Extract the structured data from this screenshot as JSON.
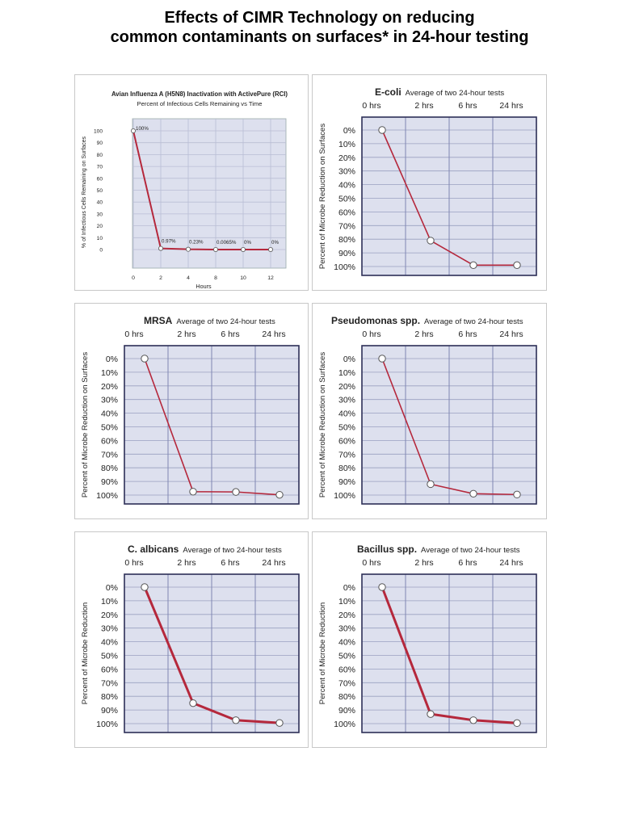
{
  "page": {
    "title_line1": "Effects of CIMR Technology on reducing",
    "title_line2": "common contaminants on surfaces* in 24-hour testing"
  },
  "colors": {
    "line": "#b5283c",
    "plot_bg": "#dde0ee",
    "frame": "#2d2f57",
    "grid": "#9aa0c0",
    "panel_border": "#c8c8c8"
  },
  "chart_data": [
    {
      "type": "line",
      "title": "Avian Influenza A (H5N8) Inactivation with ActivePure (RCI)",
      "subtitle": "Percent of Infectious Cells Remaining vs Time",
      "xlabel": "Hours",
      "ylabel": "% of Infectious Cells Remaining on Surfaces",
      "x_ticks": [
        "0",
        "2",
        "4",
        "8",
        "10",
        "12"
      ],
      "y_ticks": [
        "100",
        "90",
        "80",
        "70",
        "60",
        "50",
        "40",
        "30",
        "20",
        "10",
        "0"
      ],
      "ylim": [
        0,
        100
      ],
      "x": [
        0,
        2,
        4,
        8,
        10,
        12
      ],
      "values": [
        100,
        0.97,
        0.23,
        0.0065,
        0,
        0
      ],
      "point_labels": [
        "100%",
        "0.97%",
        "0.23%",
        "0.0065%",
        "0%",
        "0%"
      ]
    },
    {
      "type": "line",
      "title": "E-coli",
      "subtitle": "Average of two 24-hour tests",
      "ylabel": "Percent of Microbe Reduction on Surfaces",
      "categories": [
        "0 hrs",
        "2 hrs",
        "6 hrs",
        "24 hrs"
      ],
      "y_ticks": [
        "0%",
        "10%",
        "20%",
        "30%",
        "40%",
        "50%",
        "60%",
        "70%",
        "80%",
        "90%",
        "100%"
      ],
      "ylim": [
        0,
        100
      ],
      "values": [
        0,
        81,
        99,
        99
      ]
    },
    {
      "type": "line",
      "title": "MRSA",
      "subtitle": "Average of two 24-hour tests",
      "ylabel": "Percent of Microbe Reduction on Surfaces",
      "categories": [
        "0 hrs",
        "2 hrs",
        "6 hrs",
        "24 hrs"
      ],
      "y_ticks": [
        "0%",
        "10%",
        "20%",
        "30%",
        "40%",
        "50%",
        "60%",
        "70%",
        "80%",
        "90%",
        "100%"
      ],
      "ylim": [
        0,
        100
      ],
      "values": [
        0,
        97.5,
        97.7,
        99.8
      ]
    },
    {
      "type": "line",
      "title": "Pseudomonas spp.",
      "subtitle": "Average of two 24-hour tests",
      "ylabel": "Percent of Microbe Reduction on Surfaces",
      "categories": [
        "0 hrs",
        "2 hrs",
        "6 hrs",
        "24 hrs"
      ],
      "y_ticks": [
        "0%",
        "10%",
        "20%",
        "30%",
        "40%",
        "50%",
        "60%",
        "70%",
        "80%",
        "90%",
        "100%"
      ],
      "ylim": [
        0,
        100
      ],
      "values": [
        0,
        92,
        99,
        99.6
      ]
    },
    {
      "type": "line",
      "title": "C. albicans",
      "subtitle": "Average of two 24-hour tests",
      "ylabel": "Percent of Microbe Reduction",
      "categories": [
        "0 hrs",
        "2 hrs",
        "6 hrs",
        "24 hrs"
      ],
      "y_ticks": [
        "0%",
        "10%",
        "20%",
        "30%",
        "40%",
        "50%",
        "60%",
        "70%",
        "80%",
        "90%",
        "100%"
      ],
      "ylim": [
        0,
        100
      ],
      "values": [
        0,
        85,
        97.5,
        99.5
      ]
    },
    {
      "type": "line",
      "title": "Bacillus spp.",
      "subtitle": "Average of two 24-hour tests",
      "ylabel": "Percent of Microbe Reduction",
      "categories": [
        "0 hrs",
        "2 hrs",
        "6 hrs",
        "24 hrs"
      ],
      "y_ticks": [
        "0%",
        "10%",
        "20%",
        "30%",
        "40%",
        "50%",
        "60%",
        "70%",
        "80%",
        "90%",
        "100%"
      ],
      "ylim": [
        0,
        100
      ],
      "values": [
        0,
        93,
        97.5,
        99.6
      ]
    }
  ]
}
